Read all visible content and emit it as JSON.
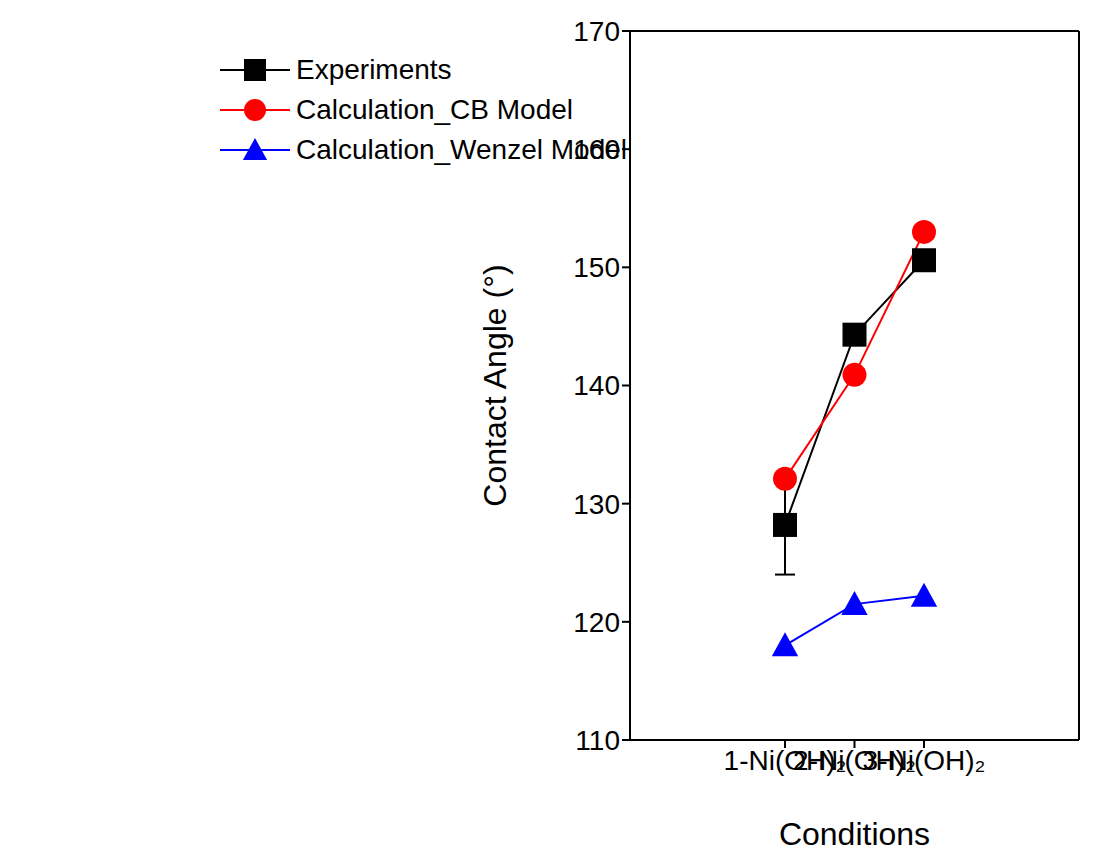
{
  "chart_data": {
    "type": "line",
    "x_label": "Conditions",
    "y_label": "Contact Angle (°)",
    "categories": [
      "1-Ni(OH)₂",
      "2-Ni(OH)₂",
      "3-Ni(OH)₂"
    ],
    "ylim": [
      110,
      170
    ],
    "yticks": [
      110,
      120,
      130,
      140,
      150,
      160,
      170
    ],
    "grid": false,
    "legend": "upper left",
    "series": [
      {
        "name": "Experiments",
        "color": "#000000",
        "marker": "square",
        "values": [
          128.2,
          144.3,
          150.6
        ],
        "errors": [
          4.2,
          0.6,
          0.6
        ]
      },
      {
        "name": "Calculation_CB Model",
        "color": "#ff0000",
        "marker": "circle",
        "values": [
          132.1,
          140.9,
          153.0
        ]
      },
      {
        "name": "Calculation_Wenzel Model",
        "color": "#0000ff",
        "marker": "triangle",
        "values": [
          118.0,
          121.5,
          122.2
        ]
      }
    ]
  }
}
